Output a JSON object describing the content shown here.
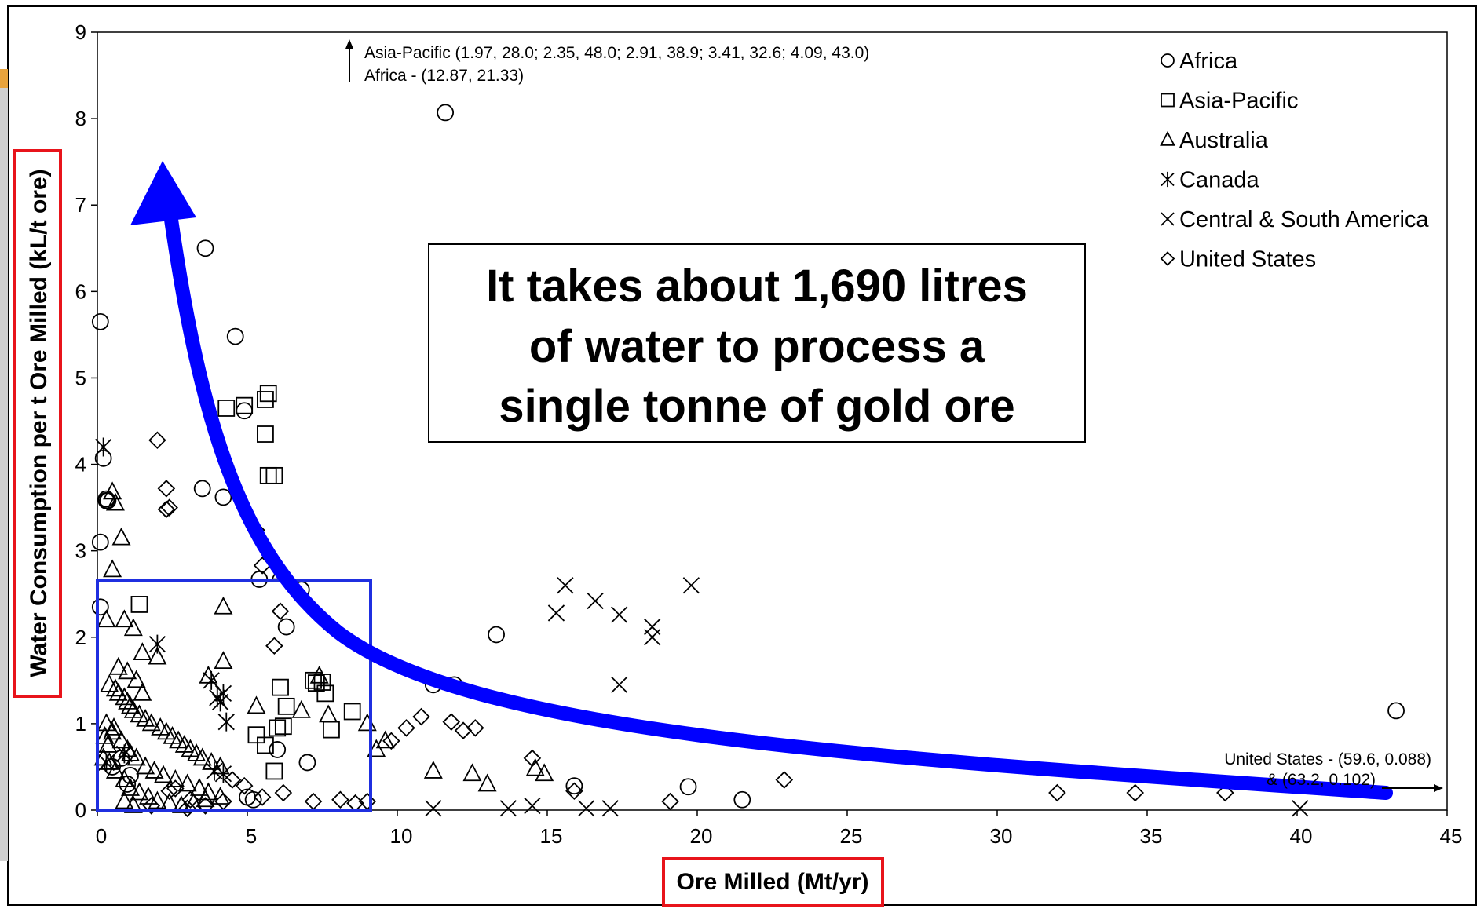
{
  "chart_data": {
    "type": "scatter",
    "xlabel": "Ore Milled (Mt/yr)",
    "ylabel": "Water Consumption per t Ore Milled (kL/t ore)",
    "xlim": [
      0,
      45
    ],
    "ylim": [
      0,
      9
    ],
    "xticks": [
      "0",
      "5",
      "10",
      "15",
      "20",
      "25",
      "30",
      "35",
      "40",
      "45"
    ],
    "yticks": [
      "0",
      "1",
      "2",
      "3",
      "4",
      "5",
      "6",
      "7",
      "8",
      "9"
    ],
    "grid": false,
    "legend_position": "top-right",
    "annotations": {
      "top_note_1": "Asia-Pacific (1.97, 28.0; 2.35, 48.0; 2.91, 38.9; 3.41, 32.6; 4.09, 43.0)",
      "top_note_2": "Africa - (12.87, 21.33)",
      "right_note_1": "United States - (59.6, 0.088)",
      "right_note_2": "& (63.2, 0.102)",
      "callout_line_1": "It takes about 1,690 litres",
      "callout_line_2": "of water to process a",
      "callout_line_3": "single tonne of gold ore"
    },
    "colors": {
      "arrow": "#0000ff",
      "highlight_box": "#1f2fe0",
      "axis_title_box": "#e8141b",
      "markers": "#000000"
    },
    "series": [
      {
        "name": "Africa",
        "marker": "circle",
        "x": [
          0.1,
          0.2,
          0.3,
          0.35,
          0.3,
          0.1,
          0.1,
          3.6,
          3.5,
          4.2,
          4.6,
          4.9,
          6.8,
          6.3,
          5.4,
          11.6,
          13.3,
          11.2,
          11.9,
          15.9,
          19.7,
          21.5,
          43.3,
          7.0,
          6.0,
          1.0,
          1.1,
          0.8,
          0.5,
          5.0,
          5.2
        ],
        "y": [
          5.65,
          4.07,
          3.6,
          3.58,
          3.58,
          3.1,
          2.35,
          6.5,
          3.72,
          3.62,
          5.48,
          4.62,
          2.55,
          2.12,
          2.67,
          8.07,
          2.03,
          1.45,
          1.45,
          0.28,
          0.27,
          0.12,
          1.15,
          0.55,
          0.7,
          0.3,
          0.4,
          0.6,
          0.5,
          0.15,
          0.12
        ]
      },
      {
        "name": "Asia-Pacific",
        "marker": "square",
        "x": [
          1.4,
          4.3,
          4.9,
          5.7,
          5.6,
          5.6,
          5.7,
          5.9,
          6.1,
          6.3,
          6.2,
          7.2,
          7.3,
          7.5,
          7.6,
          8.5,
          5.3,
          5.6,
          6.0,
          5.9,
          7.8
        ],
        "y": [
          2.38,
          4.65,
          4.68,
          4.82,
          4.75,
          4.35,
          3.87,
          3.87,
          1.42,
          1.2,
          0.97,
          1.5,
          1.47,
          1.48,
          1.35,
          1.14,
          0.87,
          0.75,
          0.95,
          0.45,
          0.93
        ]
      },
      {
        "name": "Australia",
        "marker": "triangle",
        "x": [
          0.5,
          0.6,
          0.8,
          0.5,
          0.9,
          1.2,
          1.5,
          2.0,
          1.0,
          1.3,
          0.4,
          0.6,
          0.7,
          0.9,
          1.0,
          1.1,
          1.2,
          1.4,
          1.6,
          1.8,
          2.1,
          2.3,
          2.5,
          2.7,
          2.9,
          3.1,
          3.3,
          3.5,
          3.8,
          4.1,
          0.3,
          0.5,
          0.8,
          1.0,
          1.3,
          1.6,
          1.9,
          2.2,
          2.6,
          3.0,
          3.4,
          3.7,
          4.1,
          0.2,
          0.4,
          0.6,
          0.9,
          1.1,
          1.4,
          1.7,
          2.0,
          2.4,
          2.8,
          3.2,
          3.6,
          4.2,
          5.3,
          6.8,
          7.4,
          7.7,
          9.0,
          9.3,
          9.6,
          11.2,
          12.5,
          13.0,
          14.6,
          14.9,
          6.1,
          0.3,
          0.9,
          1.2,
          0.7,
          4.2,
          3.7,
          1.5,
          0.35,
          0.25,
          0.55,
          1.1
        ],
        "y": [
          3.68,
          3.55,
          3.15,
          2.78,
          2.2,
          2.1,
          1.82,
          1.77,
          1.6,
          1.5,
          1.45,
          1.4,
          1.35,
          1.3,
          1.25,
          1.2,
          1.15,
          1.1,
          1.05,
          1.0,
          0.95,
          0.9,
          0.85,
          0.8,
          0.75,
          0.7,
          0.65,
          0.6,
          0.55,
          0.5,
          1.0,
          0.9,
          0.8,
          0.7,
          0.6,
          0.5,
          0.45,
          0.4,
          0.35,
          0.3,
          0.25,
          0.2,
          0.15,
          0.6,
          0.55,
          0.45,
          0.35,
          0.25,
          0.2,
          0.15,
          0.1,
          0.08,
          0.05,
          0.08,
          0.12,
          2.35,
          1.2,
          1.15,
          1.55,
          1.1,
          1.0,
          0.7,
          0.8,
          0.45,
          0.42,
          0.3,
          0.48,
          0.42,
          2.75,
          2.2,
          0.1,
          0.05,
          1.65,
          1.72,
          1.55,
          1.35,
          0.75,
          0.85,
          0.95,
          0.65
        ]
      },
      {
        "name": "Canada",
        "marker": "asterisk",
        "x": [
          0.2,
          2.0,
          3.8,
          4.0,
          4.1,
          4.2,
          4.3,
          3.9,
          4.2,
          0.3,
          0.9
        ],
        "y": [
          4.2,
          1.92,
          1.5,
          1.3,
          1.25,
          1.35,
          1.02,
          0.45,
          0.42,
          0.55,
          0.65
        ]
      },
      {
        "name": "Central & South America",
        "marker": "x",
        "x": [
          15.6,
          15.3,
          16.6,
          17.4,
          18.5,
          18.5,
          19.8,
          17.4,
          11.2,
          13.7,
          14.5,
          16.3,
          17.1,
          40.1
        ],
        "y": [
          2.6,
          2.28,
          2.42,
          2.26,
          2.12,
          2.0,
          2.6,
          1.45,
          0.02,
          0.02,
          0.05,
          0.02,
          0.02,
          0.02
        ]
      },
      {
        "name": "United States",
        "marker": "diamond",
        "x": [
          2.0,
          2.3,
          2.3,
          2.4,
          5.3,
          5.5,
          6.1,
          5.9,
          2.4,
          2.6,
          3.1,
          3.6,
          4.2,
          4.5,
          4.9,
          5.5,
          6.2,
          9.0,
          9.8,
          10.3,
          10.8,
          11.8,
          12.2,
          12.6,
          14.5,
          15.9,
          19.1,
          22.9,
          32.0,
          34.6,
          37.6,
          8.1,
          8.6,
          7.2,
          1.8,
          3.0
        ],
        "y": [
          4.28,
          3.72,
          3.48,
          3.5,
          3.24,
          2.83,
          2.3,
          1.9,
          0.22,
          0.25,
          0.12,
          0.05,
          0.1,
          0.35,
          0.28,
          0.15,
          0.2,
          0.1,
          0.8,
          0.95,
          1.08,
          1.02,
          0.92,
          0.95,
          0.6,
          0.22,
          0.1,
          0.35,
          0.2,
          0.2,
          0.2,
          0.12,
          0.08,
          0.1,
          0.05,
          0.02
        ]
      }
    ]
  }
}
